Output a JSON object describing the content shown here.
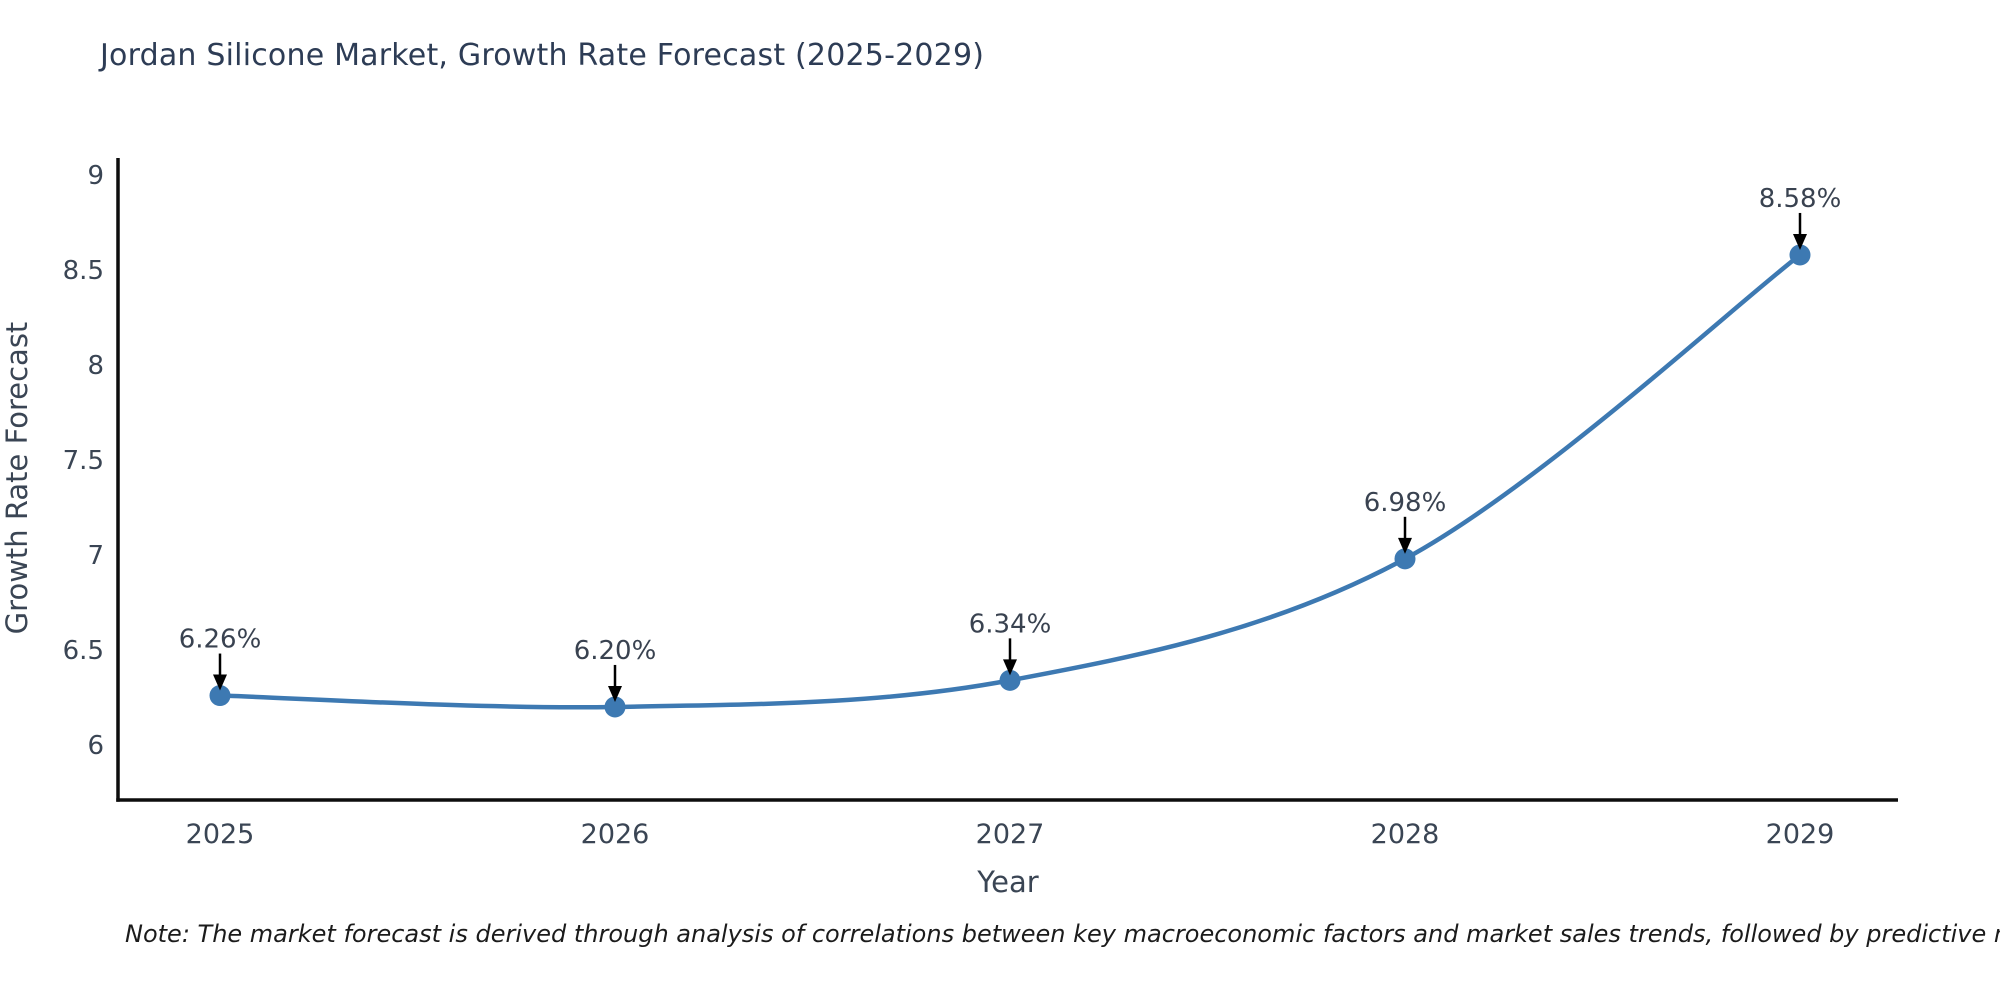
{
  "title": "Jordan Silicone Market, Growth Rate Forecast (2025-2029)",
  "note": "Note: The market forecast is derived through analysis of correlations between key macroeconomic factors and market sales trends, followed by predictive modeling to project future sales",
  "chart_data": {
    "type": "line",
    "title": "Jordan Silicone Market, Growth Rate Forecast (2025-2029)",
    "categories": [
      "2025",
      "2026",
      "2027",
      "2028",
      "2029"
    ],
    "values": [
      6.26,
      6.2,
      6.34,
      6.98,
      8.58
    ],
    "point_labels": [
      "6.26%",
      "6.20%",
      "6.34%",
      "6.98%",
      "8.58%"
    ],
    "xlabel": "Year",
    "ylabel": "Growth Rate Forecast",
    "y_ticks": [
      6,
      6.5,
      7,
      7.5,
      8,
      8.5,
      9
    ],
    "y_tick_labels": [
      "6",
      "6.5",
      "7",
      "7.5",
      "8",
      "8.5",
      "9"
    ],
    "ylim": [
      5.71,
      9.08
    ],
    "grid": false,
    "legend": "none",
    "line_color": "#3d79b2",
    "marker_color": "#3d79b2",
    "arrow_color": "#000000",
    "axis_color": "#0d0d0d",
    "tick_text_color": "#3a4554",
    "annotation_text_color": "#394250",
    "title_color": "#2d3c55"
  }
}
